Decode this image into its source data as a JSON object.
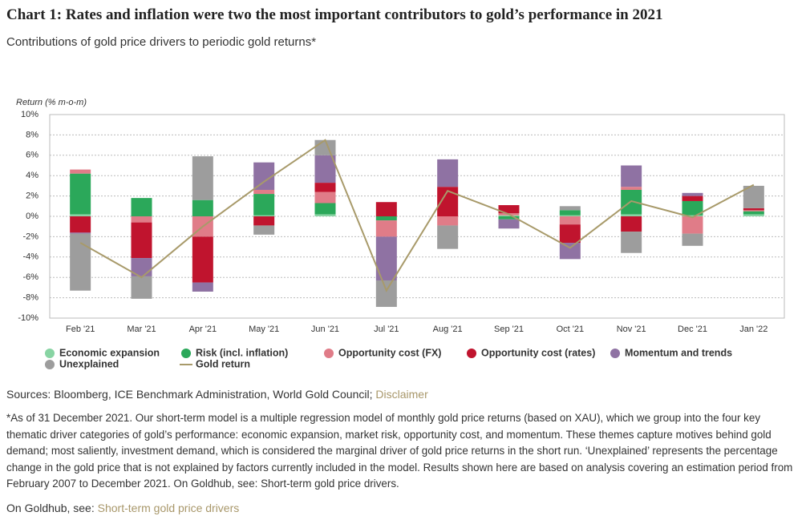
{
  "chart_data": {
    "type": "bar",
    "stacked": true,
    "title": "Chart 1: Rates and inflation were two the most important contributors to gold’s performance in 2021",
    "subtitle": "Contributions of gold price drivers to periodic gold returns*",
    "y_label": "Return (% m-o-m)",
    "categories": [
      "Feb '21",
      "Mar '21",
      "Apr '21",
      "May '21",
      "Jun '21",
      "Jul '21",
      "Aug '21",
      "Sep '21",
      "Oct '21",
      "Nov '21",
      "Dec '21",
      "Jan '22"
    ],
    "series": [
      {
        "name": "Economic expansion",
        "color": "#88d4a3",
        "type": "bar",
        "values": [
          0.2,
          0,
          0,
          0.1,
          0.2,
          0,
          0,
          0.1,
          0.1,
          0.2,
          0.1,
          0.2
        ]
      },
      {
        "name": "Risk (incl. inflation)",
        "color": "#2ba85a",
        "type": "bar",
        "values": [
          4.0,
          1.8,
          1.6,
          2.1,
          1.1,
          -0.4,
          0,
          -0.3,
          0.5,
          2.4,
          1.4,
          0.3
        ]
      },
      {
        "name": "Opportunity cost (FX)",
        "color": "#e07c88",
        "type": "bar",
        "values": [
          0.4,
          -0.6,
          -2.0,
          0.4,
          1.1,
          -1.6,
          -0.9,
          0.2,
          -0.8,
          0.3,
          -1.7,
          0.1
        ]
      },
      {
        "name": "Opportunity cost (rates)",
        "color": "#c0142e",
        "type": "bar",
        "values": [
          -1.6,
          -3.5,
          -4.5,
          -0.9,
          0.9,
          1.4,
          2.9,
          0.8,
          -1.8,
          -1.5,
          0.5,
          0.2
        ]
      },
      {
        "name": "Momentum and trends",
        "color": "#8f72a3",
        "type": "bar",
        "values": [
          -0.1,
          -1.8,
          -0.9,
          2.7,
          2.7,
          -4.3,
          2.7,
          -0.9,
          -1.6,
          2.1,
          0.3,
          0
        ]
      },
      {
        "name": "Unexplained",
        "color": "#9d9d9d",
        "type": "bar",
        "values": [
          -5.6,
          -2.2,
          4.3,
          -0.9,
          1.5,
          -2.6,
          -2.3,
          0,
          0.4,
          -2.1,
          -1.2,
          2.2
        ]
      },
      {
        "name": "Gold return",
        "color": "#a89a6a",
        "type": "line",
        "values": [
          -2.6,
          -6.0,
          -1.0,
          3.4,
          7.5,
          -7.3,
          2.5,
          0.2,
          -3.1,
          1.5,
          -0.1,
          3.1
        ]
      }
    ],
    "ylim": [
      -10,
      10
    ],
    "yticks": [
      {
        "value": -10,
        "label": "-10%"
      },
      {
        "value": -8,
        "label": "-8%"
      },
      {
        "value": -6,
        "label": "-6%"
      },
      {
        "value": -4,
        "label": "-4%"
      },
      {
        "value": -2,
        "label": "-2%"
      },
      {
        "value": 0,
        "label": "0%"
      },
      {
        "value": 2,
        "label": "2%"
      },
      {
        "value": 4,
        "label": "4%"
      },
      {
        "value": 6,
        "label": "6%"
      },
      {
        "value": 8,
        "label": "8%"
      },
      {
        "value": 10,
        "label": "10%"
      }
    ],
    "grid": true
  },
  "notes": {
    "sources": "Sources: Bloomberg, ICE Benchmark Administration, World Gold Council;",
    "disclaimer": "Disclaimer",
    "footnote": "*As of 31 December 2021. Our short-term model is a multiple regression model of monthly gold price returns (based on XAU), which we group into the four key thematic driver categories of gold’s performance: economic expansion, market risk, opportunity cost, and momentum. These themes capture motives behind gold demand; most saliently, investment demand, which is considered the marginal driver of gold price returns in the short run. ‘Unexplained’ represents the percentage change in the gold price that is not explained by factors currently included in the model. Results shown here are based on analysis covering an estimation period from February 2007 to December 2021. On Goldhub, see: Short-term gold price drivers.",
    "goldhub_prefix": "On Goldhub, see:",
    "goldhub_link": "Short-term gold price drivers"
  }
}
